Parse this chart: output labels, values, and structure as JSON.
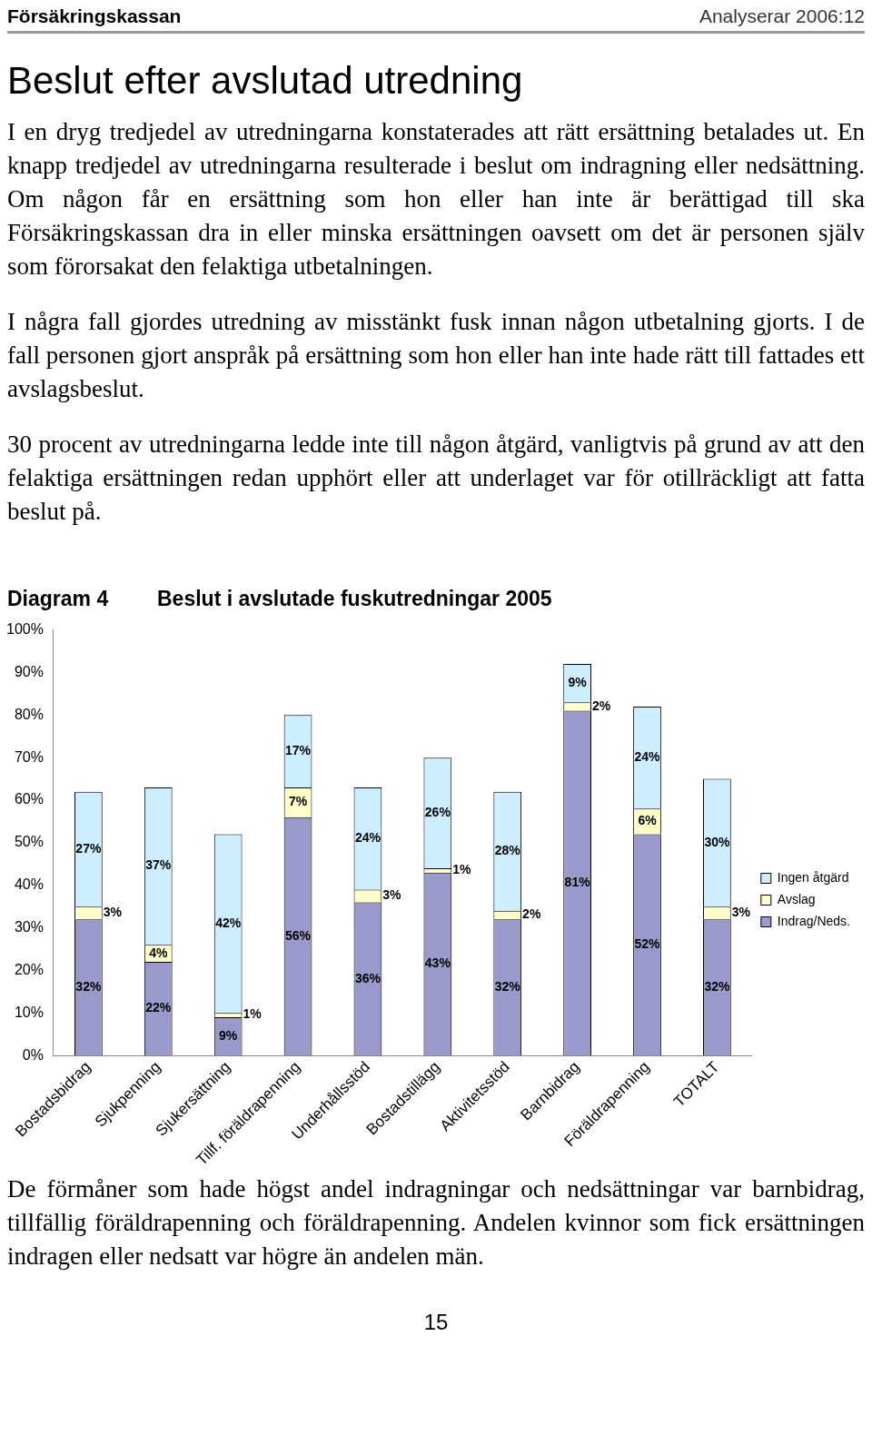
{
  "chart_data": {
    "type": "bar",
    "stacked": true,
    "title": "Beslut i avslutade fuskutredningar 2005",
    "categories": [
      "Bostadsbidrag",
      "Sjukpenning",
      "Sjukersättning",
      "Tillf. föräldrapenning",
      "Underhållsstöd",
      "Bostadstillägg",
      "Aktivitetsstöd",
      "Barnbidrag",
      "Föräldrapenning",
      "TOTALT"
    ],
    "series": [
      {
        "name": "Indrag/Neds.",
        "color": "#9999cc",
        "values": [
          32,
          22,
          9,
          56,
          36,
          43,
          32,
          81,
          52,
          32
        ],
        "value_labels": [
          "32%",
          "22%",
          "9%",
          "56%",
          "36%",
          "43%",
          "32%",
          "81%",
          "52%",
          "32%"
        ]
      },
      {
        "name": "Avslag",
        "color": "#ffffcc",
        "values": [
          3,
          4,
          1,
          7,
          3,
          1,
          2,
          2,
          6,
          3
        ],
        "value_labels": [
          "3%",
          "4%",
          "1%",
          "7%",
          "3%",
          "1%",
          "2%",
          "2%",
          "6%",
          "3%"
        ]
      },
      {
        "name": "Ingen åtgärd",
        "color": "#cceeff",
        "values": [
          27,
          37,
          42,
          17,
          24,
          26,
          28,
          9,
          24,
          30
        ],
        "value_labels": [
          "27%",
          "37%",
          "42%",
          "17%",
          "24%",
          "26%",
          "28%",
          "9%",
          "24%",
          "30%"
        ]
      }
    ],
    "ylim": [
      0,
      100
    ],
    "yticks": [
      {
        "value": 0,
        "label": "0%"
      },
      {
        "value": 10,
        "label": "10%"
      },
      {
        "value": 20,
        "label": "20%"
      },
      {
        "value": 30,
        "label": "30%"
      },
      {
        "value": 40,
        "label": "40%"
      },
      {
        "value": 50,
        "label": "50%"
      },
      {
        "value": 60,
        "label": "60%"
      },
      {
        "value": 70,
        "label": "70%"
      },
      {
        "value": 80,
        "label": "80%"
      },
      {
        "value": 90,
        "label": "90%"
      },
      {
        "value": 100,
        "label": "100%"
      }
    ],
    "grid": false,
    "legend": "right",
    "annotations": [
      "Försäkringskassan",
      "Analyserar 2006:12",
      "Beslut efter avslutad utredning",
      "I en dryg tredjedel av utredningarna konstaterades att rätt ersättning betalades ut. En knapp tredjedel av utredningarna resulterade i beslut om indragning eller nedsättning. Om någon får en ersättning som hon eller han inte är berättigad till ska Försäkringskassan dra in eller minska ersättningen oavsett om det är personen själv som förorsakat den felaktiga utbetalningen.",
      "I några fall gjordes utredning av misstänkt fusk innan någon utbetalning gjorts. I de fall personen gjort anspråk på ersättning som hon eller han inte hade rätt till fattades ett avslagsbeslut.",
      "30 procent av utredningarna ledde inte till någon åtgärd, vanligtvis på grund av att den felaktiga ersättningen redan upphört eller att underlaget var för otillräckligt att fatta beslut på.",
      "Diagram 4",
      "De förmåner som hade högst andel indragningar och nedsättningar var barnbidrag, tillfällig föräldrapenning och föräldrapenning. Andelen kvinnor som fick ersättningen indragen eller nedsatt var högre än andelen män.",
      "15"
    ]
  }
}
